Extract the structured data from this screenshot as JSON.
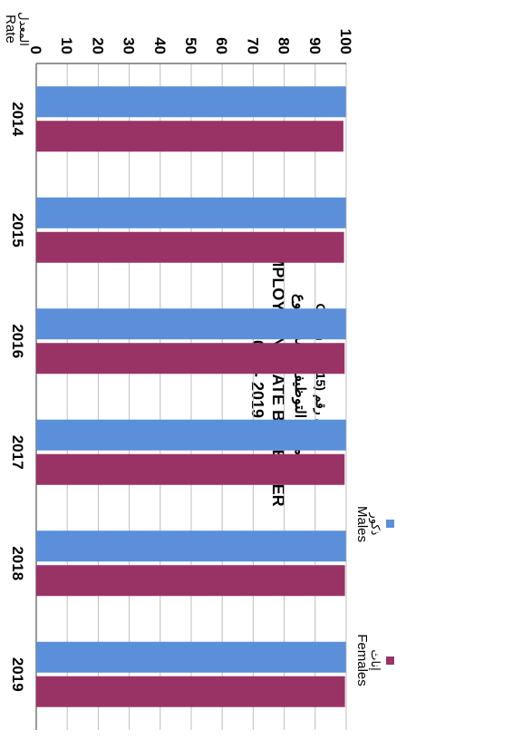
{
  "chart_data": {
    "type": "bar",
    "title_lines": [
      "Graph No. (15) شكل رقم",
      "معدل التوظيف حسب النوع",
      "EMPLOYMENT RATE BY GENDER",
      "2014 - 2019"
    ],
    "ylabel_ar": "المعدل",
    "ylabel_en": "Rate",
    "categories": [
      "2014",
      "2015",
      "2016",
      "2017",
      "2018",
      "2019"
    ],
    "series": [
      {
        "name_ar": "ذكور",
        "name_en": "Males",
        "color": "#5b8fd9",
        "values": [
          99.9,
          99.9,
          99.9,
          99.9,
          99.9,
          99.9
        ]
      },
      {
        "name_ar": "إناث",
        "name_en": "Females",
        "color": "#993366",
        "values": [
          99.1,
          99.3,
          99.5,
          99.5,
          99.6,
          99.6
        ]
      }
    ],
    "ylim": [
      0,
      100
    ],
    "yticks": [
      0,
      10,
      20,
      30,
      40,
      50,
      60,
      70,
      80,
      90,
      100
    ],
    "grid": true,
    "legend": "top-right"
  }
}
